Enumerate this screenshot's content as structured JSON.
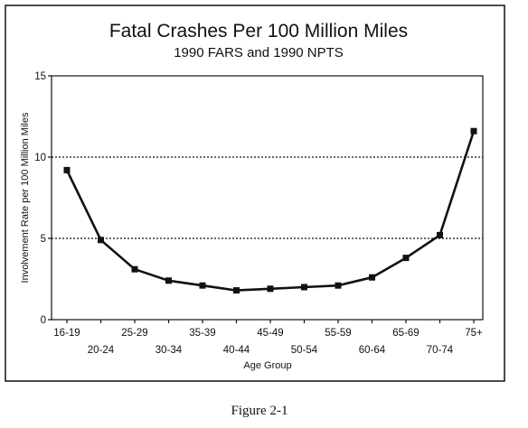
{
  "caption": "Figure 2-1",
  "chart_data": {
    "type": "line",
    "title": "Fatal Crashes Per 100 Million Miles",
    "subtitle": "1990 FARS and 1990 NPTS",
    "xlabel": "Age Group",
    "ylabel": "Involvement Rate per 100 Million Miles",
    "categories": [
      "16-19",
      "20-24",
      "25-29",
      "30-34",
      "35-39",
      "40-44",
      "45-49",
      "50-54",
      "55-59",
      "60-64",
      "65-69",
      "70-74",
      "75+"
    ],
    "values": [
      9.2,
      4.9,
      3.1,
      2.4,
      2.1,
      1.8,
      1.9,
      2.0,
      2.1,
      2.6,
      3.8,
      5.2,
      11.6
    ],
    "ylim": [
      0,
      15
    ],
    "yticks": [
      "0",
      "5",
      "10",
      "15"
    ],
    "yticks_values": [
      0,
      5,
      10,
      15
    ],
    "gridlines_at": [
      5,
      10
    ],
    "grid": "dotted horizontal at 5 and 10",
    "marker": "square",
    "color": "#111111"
  }
}
